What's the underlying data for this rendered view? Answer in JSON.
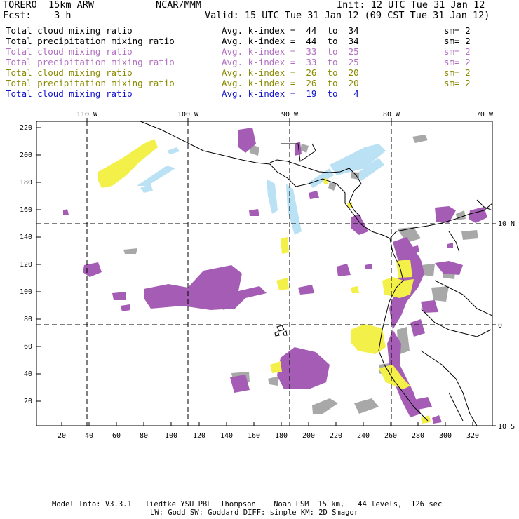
{
  "header": {
    "model": "TORERO  15km ARW",
    "org": "NCAR/MMM",
    "init": "Init: 12 UTC Tue 31 Jan 12",
    "fcst": "Fcst:    3 h",
    "valid": "Valid: 15 UTC Tue 31 Jan 12 (09 CST Tue 31 Jan 12)"
  },
  "legend": [
    {
      "field": "Total cloud mixing ratio",
      "kindex": "Avg. k-index =  44  to  34",
      "sm": "sm= 2",
      "color": "#000000"
    },
    {
      "field": "Total precipitation mixing ratio",
      "kindex": "Avg. k-index =  44  to  34",
      "sm": "sm= 2",
      "color": "#000000"
    },
    {
      "field": "Total cloud mixing ratio",
      "kindex": "Avg. k-index =  33  to  25",
      "sm": "sm= 2",
      "color": "#b070c0"
    },
    {
      "field": "Total precipitation mixing ratio",
      "kindex": "Avg. k-index =  33  to  25",
      "sm": "sm= 2",
      "color": "#b070c0"
    },
    {
      "field": "Total cloud mixing ratio",
      "kindex": "Avg. k-index =  26  to  20",
      "sm": "sm= 2",
      "color": "#8a8a00"
    },
    {
      "field": "Total precipitation mixing ratio",
      "kindex": "Avg. k-index =  26  to  20",
      "sm": "sm= 2",
      "color": "#8a8a00"
    },
    {
      "field": "Total cloud mixing ratio",
      "kindex": "Avg. k-index =  19  to   4",
      "sm": "",
      "color": "#1010d0"
    }
  ],
  "map": {
    "lon_labels": [
      "110 W",
      "100 W",
      "90 W",
      "80 W",
      "70 W"
    ],
    "lat_labels": [
      "10 N",
      "0",
      "10 S"
    ],
    "x_ticks": [
      "20",
      "40",
      "60",
      "80",
      "100",
      "120",
      "140",
      "160",
      "180",
      "200",
      "220",
      "240",
      "260",
      "280",
      "300",
      "320"
    ],
    "y_ticks": [
      "220",
      "200",
      "180",
      "160",
      "140",
      "120",
      "100",
      "80",
      "60",
      "40",
      "20"
    ],
    "colors": {
      "purple": "#a45cb4",
      "yellow": "#f4f04a",
      "gray": "#a8a8a8",
      "lightblue": "#b4def4"
    }
  },
  "footer": {
    "line1": "Model Info: V3.3.1   Tiedtke YSU PBL  Thompson    Noah LSM  15 km,   44 levels,  126 sec",
    "line2": "LW: Godd SW: Goddard DIFF: simple KM: 2D Smagor"
  }
}
